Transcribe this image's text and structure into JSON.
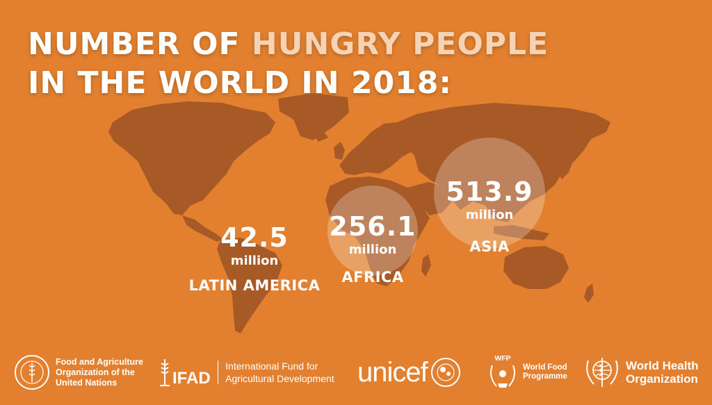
{
  "title": {
    "line1_prefix": "NUMBER OF ",
    "line1_highlight": "HUNGRY PEOPLE",
    "line2": "IN THE WORLD IN 2018:"
  },
  "regions": [
    {
      "value": "42.5",
      "unit": "million",
      "region": "LATIN AMERICA"
    },
    {
      "value": "256.1",
      "unit": "million",
      "region": "AFRICA"
    },
    {
      "value": "513.9",
      "unit": "million",
      "region": "ASIA"
    }
  ],
  "logos": {
    "fao": {
      "lines": [
        "Food and Agriculture",
        "Organization of the",
        "United Nations"
      ]
    },
    "ifad": {
      "wordmark": "IFAD",
      "lines": [
        "International Fund for",
        "Agricultural Development"
      ]
    },
    "unicef": {
      "wordmark": "unicef"
    },
    "wfp": {
      "badge": "WFP",
      "lines": [
        "World Food",
        "Programme"
      ]
    },
    "who": {
      "lines": [
        "World Health",
        "Organization"
      ]
    }
  },
  "colors": {
    "background": "#e2802f",
    "map": "#a85a26",
    "highlight": "#f7d3b3",
    "text": "#ffffff"
  }
}
